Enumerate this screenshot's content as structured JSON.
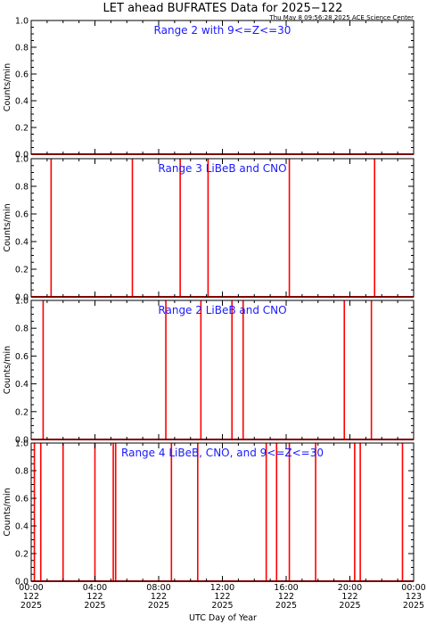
{
  "title": "LET ahead BUFRATES Data for 2025−122",
  "subtitle": "Thu May  8 09:56:28 2025 ACE Science Center",
  "xlabel": "UTC Day of Year",
  "xticks": [
    {
      "t": 0,
      "l1": "00:00",
      "l2": "122",
      "l3": "2025"
    },
    {
      "t": 4,
      "l1": "04:00",
      "l2": "122",
      "l3": "2025"
    },
    {
      "t": 8,
      "l1": "08:00",
      "l2": "122",
      "l3": "2025"
    },
    {
      "t": 12,
      "l1": "12:00",
      "l2": "122",
      "l3": "2025"
    },
    {
      "t": 16,
      "l1": "16:00",
      "l2": "122",
      "l3": "2025"
    },
    {
      "t": 20,
      "l1": "20:00",
      "l2": "122",
      "l3": "2025"
    },
    {
      "t": 24,
      "l1": "00:00",
      "l2": "123",
      "l3": "2025"
    }
  ],
  "chart_data": [
    {
      "type": "line",
      "title": "Range 2 with 9<=Z<=30",
      "ylabel": "Counts/min",
      "ylim": [
        0,
        1
      ],
      "yticks": [
        "0.0",
        "0.2",
        "0.4",
        "0.6",
        "0.8",
        "1.0"
      ],
      "xlim_hours": [
        0,
        24
      ],
      "color": "#ff0000",
      "spikes_hours": []
    },
    {
      "type": "line",
      "title": "Range 3 LiBeB and CNO",
      "ylabel": "Counts/min",
      "ylim": [
        0,
        1
      ],
      "yticks": [
        "0.0",
        "0.2",
        "0.4",
        "0.6",
        "0.8",
        "1.0"
      ],
      "xlim_hours": [
        0,
        24
      ],
      "color": "#ff0000",
      "spikes_hours": [
        1.25,
        6.35,
        9.35,
        11.1,
        16.2,
        21.55
      ]
    },
    {
      "type": "line",
      "title": "Range 2 LiBeB and CNO",
      "ylabel": "Counts/min",
      "ylim": [
        0,
        1
      ],
      "yticks": [
        "0.0",
        "0.2",
        "0.4",
        "0.6",
        "0.8",
        "1.0"
      ],
      "xlim_hours": [
        0,
        24
      ],
      "color": "#ff0000",
      "spikes_hours": [
        0.75,
        8.45,
        10.65,
        12.6,
        13.3,
        19.65,
        21.35
      ]
    },
    {
      "type": "line",
      "title": "Range 4 LiBeB, CNO, and 9<=Z<=30",
      "ylabel": "Counts/min",
      "ylim": [
        0,
        1
      ],
      "yticks": [
        "0.0",
        "0.2",
        "0.4",
        "0.6",
        "0.8",
        "1.0"
      ],
      "xlim_hours": [
        0,
        24
      ],
      "color": "#ff0000",
      "spikes_hours": [
        0.2,
        0.6,
        2.0,
        4.0,
        5.15,
        5.3,
        8.8,
        10.45,
        14.75,
        15.4,
        16.2,
        17.85,
        20.3,
        20.65,
        23.3
      ]
    }
  ]
}
